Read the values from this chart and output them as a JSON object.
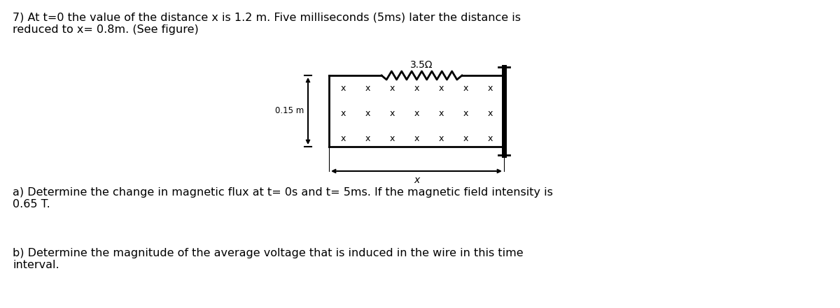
{
  "title_text": "7) At t=0 the value of the distance x is 1.2 m. Five milliseconds (5ms) later the distance is\nreduced to x= 0.8m. (See figure)",
  "question_a": "a) Determine the change in magnetic flux at t= 0s and t= 5ms. If the magnetic field intensity is\n0.65 T.",
  "question_b": "b) Determine the magnitude of the average voltage that is induced in the wire in this time\ninterval.",
  "resistor_label": "3.5Ω",
  "height_label": "0.15 m",
  "x_label": "x",
  "bg_color": "#ffffff",
  "text_color": "#000000",
  "fig_width": 12.0,
  "fig_height": 4.41,
  "font_size_main": 11.5,
  "font_size_small": 8.5
}
